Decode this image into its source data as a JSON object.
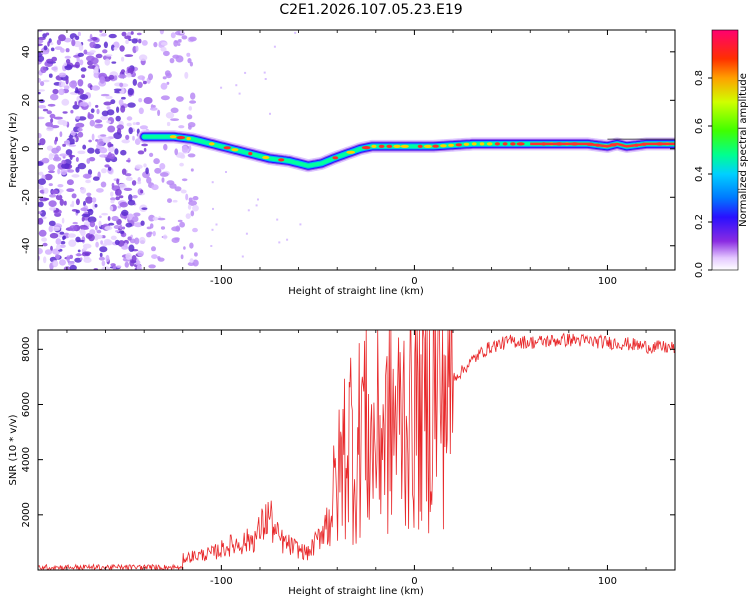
{
  "title": "C2E1.2026.107.05.23.E19",
  "colors": {
    "trace": "#e8282a",
    "background": "#ffffff",
    "axis": "#000000"
  },
  "chart_data": [
    {
      "type": "heatmap",
      "name": "spectrogram",
      "xlabel": "Height of straight line (km)",
      "ylabel": "Frequency (Hz)",
      "xlim": [
        -195,
        135
      ],
      "ylim": [
        -50,
        49
      ],
      "xticks": [
        -100,
        0,
        100
      ],
      "yticks": [
        -40,
        -20,
        0,
        20,
        40
      ],
      "xtick_labels": [
        "-100",
        "0",
        "100"
      ],
      "ytick_labels": [
        "-40",
        "-20",
        "0",
        "20",
        "40"
      ],
      "colorbar": {
        "label": "Normalized spectral amplitude",
        "range": [
          0,
          1
        ],
        "ticks": [
          0.0,
          0.2,
          0.4,
          0.6,
          0.8
        ],
        "tick_labels": [
          "0.0",
          "0.2",
          "0.4",
          "0.6",
          "0.8"
        ]
      },
      "ridge": {
        "x": [
          -140,
          -125,
          -115,
          -105,
          -95,
          -85,
          -75,
          -65,
          -55,
          -48,
          -42,
          -35,
          -28,
          -22,
          -15,
          -5,
          0,
          10,
          30,
          60,
          90,
          100,
          105,
          110,
          120,
          135
        ],
        "y": [
          5,
          5,
          4,
          2,
          0,
          -2,
          -4,
          -5,
          -7,
          -6,
          -4,
          -2,
          0,
          1,
          1,
          1,
          1,
          1,
          2,
          2,
          2,
          1,
          2,
          1,
          2,
          2
        ]
      },
      "noise_region_km": [
        -195,
        -113
      ]
    },
    {
      "type": "line",
      "name": "snr",
      "xlabel": "Height of straight line (km)",
      "ylabel": "SNR (10 * v/v)",
      "xlim": [
        -195,
        135
      ],
      "ylim": [
        0,
        8700
      ],
      "xticks": [
        -100,
        0,
        100
      ],
      "yticks": [
        2000,
        4000,
        6000,
        8000
      ],
      "xtick_labels": [
        "-100",
        "0",
        "100"
      ],
      "ytick_labels": [
        "2000",
        "4000",
        "6000",
        "8000"
      ],
      "series": [
        {
          "name": "SNR",
          "x": [
            -195,
            -170,
            -150,
            -130,
            -115,
            -105,
            -95,
            -88,
            -82,
            -78,
            -75,
            -72,
            -68,
            -62,
            -55,
            -50,
            -45,
            -40,
            -36,
            -33,
            -30,
            -27,
            -25,
            -22,
            -20,
            -17,
            -14,
            -11,
            -8,
            -5,
            -2,
            0,
            3,
            6,
            9,
            12,
            15,
            18,
            20,
            23,
            26,
            30,
            35,
            40,
            45,
            50,
            60,
            70,
            80,
            90,
            100,
            110,
            120,
            135
          ],
          "y": [
            100,
            120,
            100,
            250,
            500,
            600,
            900,
            1000,
            1200,
            1700,
            2000,
            1300,
            1000,
            800,
            600,
            1100,
            1900,
            3000,
            4500,
            5000,
            3500,
            6300,
            5000,
            4500,
            4700,
            5200,
            5000,
            5400,
            5300,
            5800,
            5900,
            6000,
            6200,
            6300,
            6500,
            6700,
            6800,
            6700,
            7000,
            7100,
            7300,
            7600,
            7900,
            8100,
            8200,
            8300,
            8250,
            8300,
            8350,
            8300,
            8250,
            8200,
            8100,
            8050
          ]
        }
      ]
    }
  ]
}
